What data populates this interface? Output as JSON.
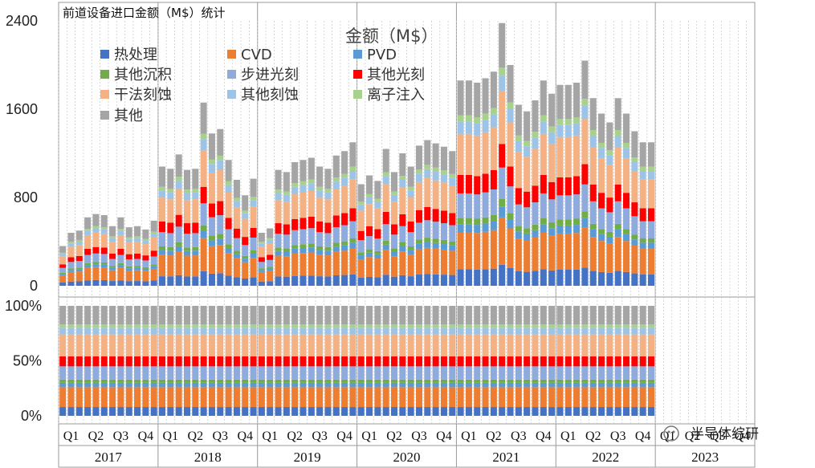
{
  "chart_data": {
    "type": "bar",
    "stacked": true,
    "title": "前道设备进口金额（M$）统计",
    "legend_title": "金额（M$）",
    "legend_placement": "top-left",
    "grid": true,
    "series": [
      {
        "name": "热处理",
        "color": "#4472C4"
      },
      {
        "name": "CVD",
        "color": "#ED7D31"
      },
      {
        "name": "PVD",
        "color": "#5B9BD5"
      },
      {
        "name": "其他沉积",
        "color": "#70AD47"
      },
      {
        "name": "步进光刻",
        "color": "#8FAADC"
      },
      {
        "name": "其他光刻",
        "color": "#FF0000"
      },
      {
        "name": "干法刻蚀",
        "color": "#F4B183"
      },
      {
        "name": "其他刻蚀",
        "color": "#9DC3E6"
      },
      {
        "name": "离子注入",
        "color": "#A9D18E"
      },
      {
        "name": "其他",
        "color": "#A5A5A5"
      }
    ],
    "share_weights": [
      0.08,
      0.18,
      0.04,
      0.03,
      0.12,
      0.09,
      0.2,
      0.06,
      0.03,
      0.17
    ],
    "x": {
      "years": [
        "2017",
        "2018",
        "2019",
        "2020",
        "2021",
        "2022",
        "2023"
      ],
      "quarters": [
        "Q1",
        "Q2",
        "Q3",
        "Q4"
      ],
      "months_per_year": 12
    },
    "totals": [
      360,
      480,
      500,
      620,
      650,
      640,
      540,
      620,
      530,
      540,
      510,
      590,
      1080,
      1060,
      1190,
      1050,
      1060,
      1660,
      1380,
      1420,
      1140,
      960,
      820,
      970,
      480,
      520,
      1050,
      1030,
      1120,
      1140,
      1160,
      1080,
      1060,
      1180,
      1220,
      1300,
      920,
      1000,
      950,
      1240,
      1030,
      1200,
      1080,
      1270,
      1320,
      1290,
      1260,
      1220,
      1860,
      1860,
      1840,
      1880,
      1940,
      2380,
      2000,
      1640,
      1580,
      1680,
      1860,
      1740,
      1820,
      1820,
      1840,
      2040,
      1700,
      1560,
      1480,
      1700,
      1560,
      1400,
      1300,
      1300
    ],
    "ylim_top": [
      0,
      2400
    ],
    "yticks_top": [
      "0",
      "800",
      "1600",
      "2400"
    ],
    "yticks_bottom": [
      "0%",
      "50%",
      "100%"
    ]
  },
  "watermark": "半导体综研"
}
